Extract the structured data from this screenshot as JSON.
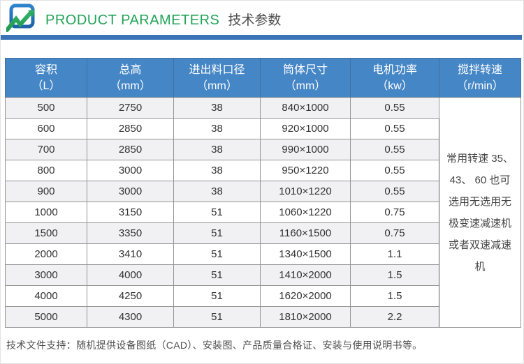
{
  "header": {
    "logo_name": "brand-logo",
    "title_en": "PRODUCT PARAMETERS",
    "title_zh": "技术参数"
  },
  "colors": {
    "title_green": "#21a457",
    "divider_blue": "#3a74b6",
    "table_header_blue": "#4586c6",
    "stripe_gray": "#f1f1f3",
    "logo_blue": "#2a7cc4",
    "logo_green": "#2fae62"
  },
  "table": {
    "columns": [
      {
        "title": "容积",
        "unit": "（L）"
      },
      {
        "title": "总高",
        "unit": "（mm）"
      },
      {
        "title": "进出料口径",
        "unit": "（mm）"
      },
      {
        "title": "筒体尺寸",
        "unit": "（mm）"
      },
      {
        "title": "电机功率",
        "unit": "（kw）"
      },
      {
        "title": "搅拌转速",
        "unit": "（r/min）"
      }
    ],
    "rows": [
      [
        "500",
        "2750",
        "38",
        "840×1000",
        "0.55"
      ],
      [
        "600",
        "2850",
        "38",
        "920×1000",
        "0.55"
      ],
      [
        "700",
        "2850",
        "38",
        "990×1000",
        "0.55"
      ],
      [
        "800",
        "3000",
        "38",
        "950×1220",
        "0.55"
      ],
      [
        "900",
        "3000",
        "38",
        "1010×1220",
        "0.55"
      ],
      [
        "1000",
        "3150",
        "51",
        "1060×1220",
        "0.75"
      ],
      [
        "1500",
        "3350",
        "51",
        "1160×1500",
        "0.75"
      ],
      [
        "2000",
        "3410",
        "51",
        "1340×1500",
        "1.1"
      ],
      [
        "3000",
        "4000",
        "51",
        "1410×2000",
        "1.5"
      ],
      [
        "4000",
        "4250",
        "51",
        "1620×2000",
        "1.5"
      ],
      [
        "5000",
        "4300",
        "51",
        "1810×2000",
        "2.2"
      ]
    ],
    "merged_note": "常用转速 35、\n43、 60 也可\n选用无选用无\n极变速减速机\n或者双速减速\n机"
  },
  "footer": {
    "note": "技术文件支持：随机提供设备图纸（CAD）、安装图、产品质量合格证、安装与使用说明书等。"
  }
}
